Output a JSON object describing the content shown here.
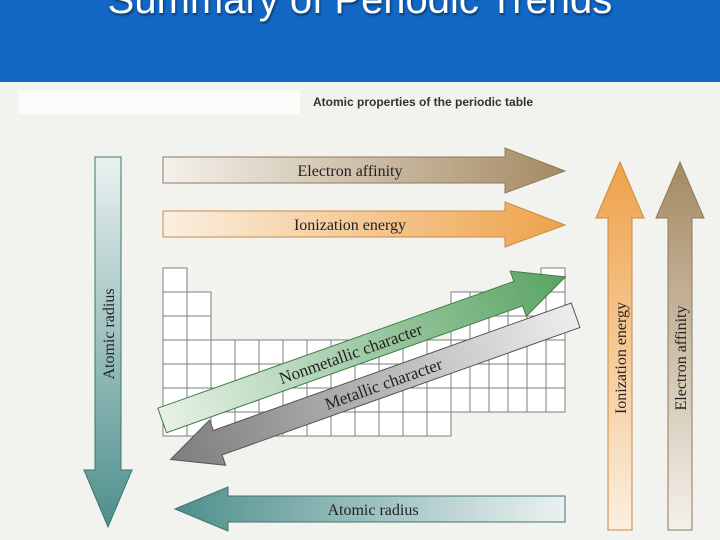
{
  "slide": {
    "title": "Summary of Periodic Trends"
  },
  "figure": {
    "caption": "Atomic properties of the periodic table",
    "arrows": {
      "top_electron_affinity": "Electron affinity",
      "top_ionization_energy": "Ionization energy",
      "left_atomic_radius": "Atomic radius",
      "right_ionization_energy": "Ionization energy",
      "right_electron_affinity": "Electron affinity",
      "nonmetallic_character": "Nonmetallic character",
      "metallic_character": "Metallic character",
      "bottom_atomic_radius": "Atomic radius"
    },
    "colors": {
      "header": "#1266c4",
      "electron_affinity": "#a58a62",
      "ionization_energy": "#eea24a",
      "atomic_radius": "#4e8f8c",
      "nonmetallic": "#5aa464",
      "metallic": "#808080"
    }
  }
}
